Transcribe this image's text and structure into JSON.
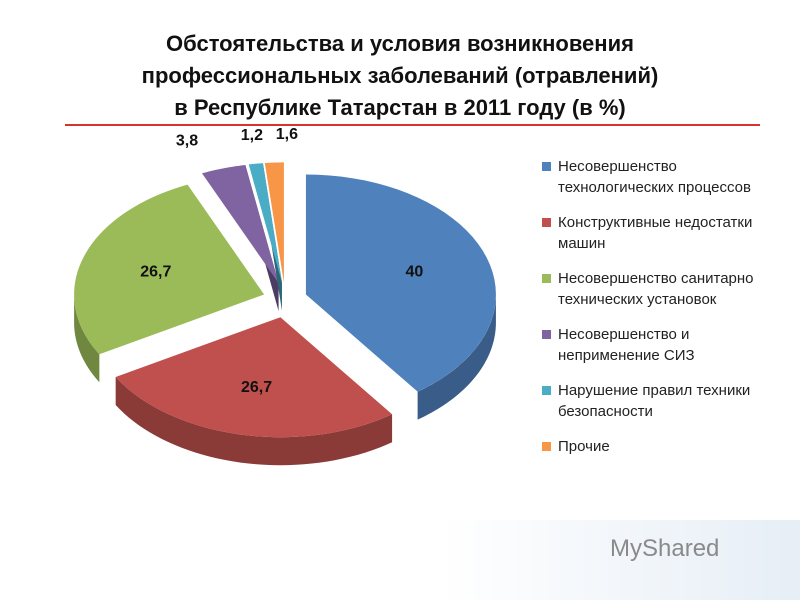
{
  "chart_data": {
    "type": "pie",
    "title": "Обстоятельства и условия возникновения\nпрофессиональных  заболеваний (отравлений)\nв Республике Татарстан в 2011 году (в %)",
    "categories": [
      "Несовершенство технологических процессов",
      "Конструктивные недостатки машин",
      "Несовершенство санитарно технических установок",
      "Несовершенство и неприменение СИЗ",
      "Нарушение правил техники безопасности",
      "Прочие"
    ],
    "values": [
      40,
      26.7,
      26.7,
      3.8,
      1.2,
      1.6
    ],
    "value_labels": [
      "40",
      "26,7",
      "26,7",
      "3,8",
      "1,2",
      "1,6"
    ],
    "colors": [
      "#4f81bd",
      "#c0504d",
      "#9bbb59",
      "#8064a2",
      "#4bacc6",
      "#f79646"
    ],
    "legend": "right",
    "watermark": "MyShared"
  }
}
